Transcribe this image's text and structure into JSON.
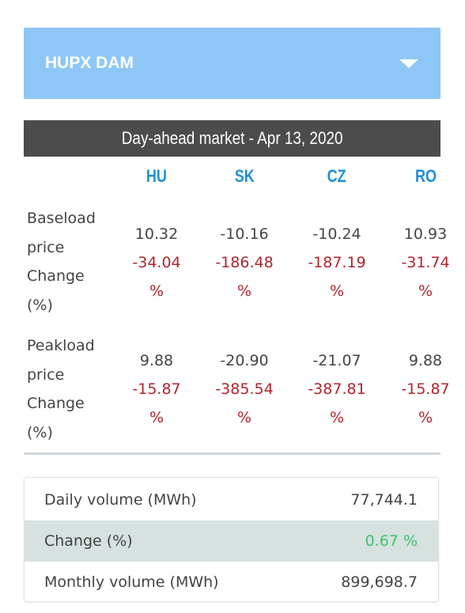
{
  "dropdown": {
    "label": "HUPX DAM"
  },
  "market": {
    "header": "Day-ahead market - Apr 13, 2020",
    "columns": [
      "HU",
      "SK",
      "CZ",
      "RO"
    ],
    "rows": [
      {
        "label": [
          "Baseload",
          "price",
          "Change",
          "(%)"
        ],
        "prices": [
          "10.32",
          "-10.16",
          "-10.24",
          "10.93"
        ],
        "changes": [
          "-34.04",
          "-186.48",
          "-187.19",
          "-31.74"
        ],
        "percent": "%"
      },
      {
        "label": [
          "Peakload",
          "price",
          "Change",
          "(%)"
        ],
        "prices": [
          "9.88",
          "-20.90",
          "-21.07",
          "9.88"
        ],
        "changes": [
          "-15.87",
          "-385.54",
          "-387.81",
          "-15.87"
        ],
        "percent": "%"
      }
    ]
  },
  "summary": {
    "daily_volume_label": "Daily volume (MWh)",
    "daily_volume_value": "77,744.1",
    "change_label": "Change (%)",
    "change_value": "0.67 %",
    "monthly_volume_label": "Monthly volume (MWh)",
    "monthly_volume_value": "899,698.7"
  },
  "colors": {
    "dropdown_bg": "#8ec7f6",
    "header_bg": "#4c4c4c",
    "column_heading": "#1f8fd6",
    "negative_change": "#b0242d",
    "positive_change": "#3cc46a"
  }
}
